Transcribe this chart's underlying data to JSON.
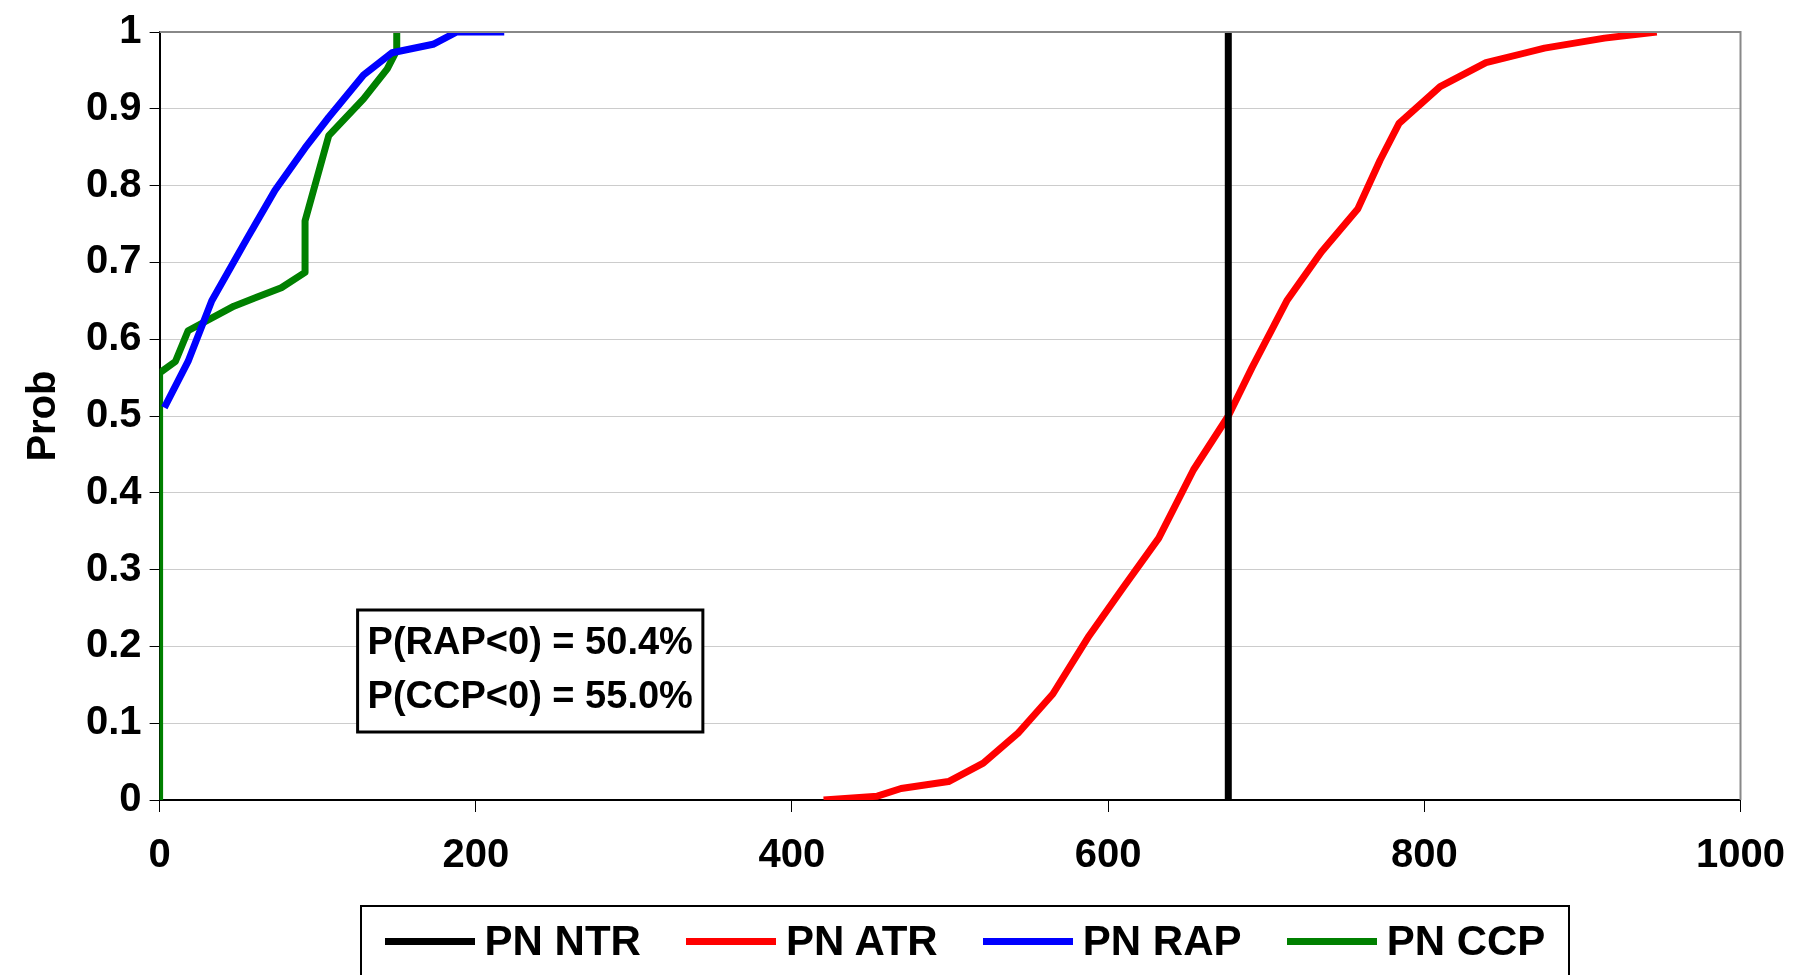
{
  "chart_data": {
    "type": "line",
    "ylabel": "Prob",
    "xlim": [
      0,
      1000
    ],
    "xticks": [
      0,
      200,
      400,
      600,
      800,
      1000
    ],
    "ylim": [
      0,
      1
    ],
    "yticks": [
      0,
      0.1,
      0.2,
      0.3,
      0.4,
      0.5,
      0.6,
      0.7,
      0.8,
      0.9,
      1
    ],
    "grid": "y",
    "legend": "bottom",
    "marker": "none",
    "line_style": "solid",
    "annotations": [
      "P(RAP<0) = 50.4%",
      "P(CCP<0) = 55.0%"
    ],
    "series": [
      {
        "name": "PN NTR",
        "color": "#000000",
        "x": [
          676,
          676
        ],
        "values": [
          0,
          1
        ]
      },
      {
        "name": "PN ATR",
        "color": "#ff0000",
        "x": [
          420,
          454,
          469,
          499,
          521,
          543,
          565,
          588,
          610,
          632,
          654,
          676,
          691,
          713,
          735,
          758,
          772,
          784,
          810,
          839,
          876,
          914,
          947
        ],
        "values": [
          0,
          0.005,
          0.015,
          0.024,
          0.048,
          0.087,
          0.138,
          0.214,
          0.278,
          0.341,
          0.43,
          0.5,
          0.563,
          0.65,
          0.714,
          0.77,
          0.833,
          0.881,
          0.929,
          0.96,
          0.979,
          0.992,
          1
        ]
      },
      {
        "name": "PN RAP",
        "color": "#0000ff",
        "x": [
          3,
          18,
          33,
          55,
          73,
          92,
          107,
          129,
          147,
          173,
          188,
          218
        ],
        "values": [
          0.511,
          0.571,
          0.65,
          0.73,
          0.794,
          0.849,
          0.889,
          0.944,
          0.973,
          0.984,
          1,
          1
        ]
      },
      {
        "name": "PN CCP",
        "color": "#008000",
        "x": [
          0,
          0,
          10,
          18,
          47,
          77,
          92,
          92,
          107,
          129,
          144,
          150,
          150
        ],
        "values": [
          0,
          0.556,
          0.571,
          0.611,
          0.643,
          0.667,
          0.687,
          0.754,
          0.865,
          0.913,
          0.952,
          0.976,
          1
        ]
      }
    ]
  }
}
